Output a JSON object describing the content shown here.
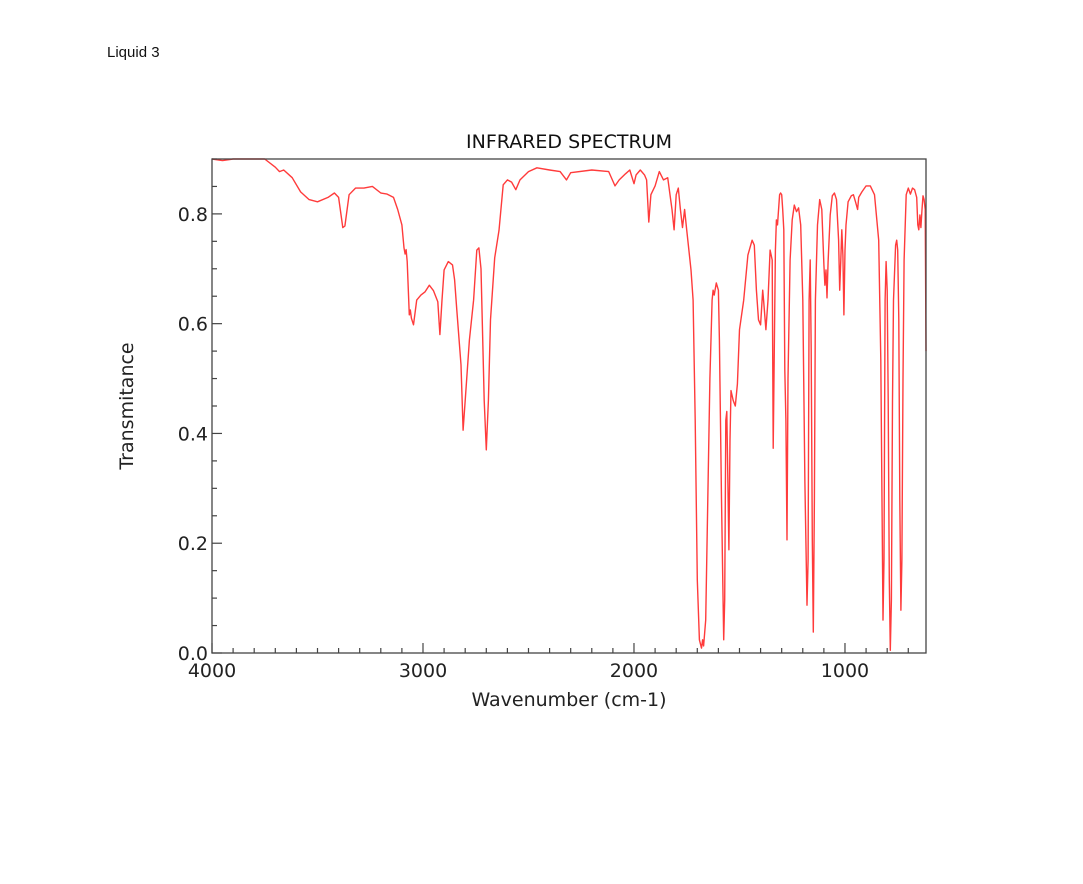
{
  "page": {
    "label": "Liquid 3"
  },
  "chart_data": {
    "type": "line",
    "title": "INFRARED SPECTRUM",
    "xlabel": "Wavenumber (cm-1)",
    "ylabel": "Transmitance",
    "xlim": [
      4000,
      616
    ],
    "ylim": [
      0.0,
      0.9
    ],
    "x_inverted": true,
    "grid": false,
    "legend": null,
    "line_color": "#ff3b3b",
    "x_major_ticks": [
      4000,
      3000,
      2000,
      1000
    ],
    "x_tick_labels": [
      "4000",
      "3000",
      "2000",
      "1000"
    ],
    "x_minor_step": 100,
    "y_major_ticks": [
      0.0,
      0.2,
      0.4,
      0.6,
      0.8
    ],
    "y_tick_labels": [
      "0.0",
      "0.2",
      "0.4",
      "0.6",
      "0.8"
    ],
    "y_minor_step": 0.05,
    "series": [
      {
        "name": "Transmittance",
        "x": [
          4000,
          3950,
          3900,
          3800,
          3750,
          3700,
          3680,
          3660,
          3620,
          3580,
          3540,
          3500,
          3450,
          3420,
          3400,
          3380,
          3370,
          3350,
          3320,
          3280,
          3240,
          3200,
          3170,
          3140,
          3120,
          3100,
          3090,
          3085,
          3080,
          3075,
          3065,
          3060,
          3055,
          3045,
          3030,
          3010,
          2990,
          2970,
          2950,
          2930,
          2920,
          2910,
          2900,
          2880,
          2860,
          2850,
          2840,
          2820,
          2810,
          2800,
          2780,
          2760,
          2745,
          2735,
          2725,
          2710,
          2700,
          2690,
          2680,
          2660,
          2640,
          2620,
          2600,
          2580,
          2560,
          2540,
          2500,
          2460,
          2400,
          2350,
          2320,
          2300,
          2200,
          2120,
          2090,
          2070,
          2040,
          2020,
          2000,
          1990,
          1970,
          1950,
          1940,
          1930,
          1920,
          1900,
          1880,
          1860,
          1840,
          1820,
          1810,
          1800,
          1790,
          1780,
          1770,
          1760,
          1750,
          1730,
          1720,
          1710,
          1700,
          1690,
          1680,
          1675,
          1670,
          1660,
          1650,
          1640,
          1630,
          1625,
          1620,
          1610,
          1600,
          1595,
          1585,
          1575,
          1570,
          1565,
          1560,
          1555,
          1550,
          1545,
          1540,
          1530,
          1520,
          1510,
          1500,
          1480,
          1460,
          1440,
          1430,
          1420,
          1410,
          1400,
          1390,
          1385,
          1375,
          1365,
          1355,
          1345,
          1340,
          1330,
          1325,
          1320,
          1310,
          1305,
          1300,
          1295,
          1290,
          1285,
          1280,
          1275,
          1270,
          1260,
          1250,
          1240,
          1230,
          1220,
          1210,
          1200,
          1190,
          1180,
          1175,
          1170,
          1165,
          1160,
          1155,
          1150,
          1145,
          1140,
          1130,
          1120,
          1110,
          1100,
          1095,
          1090,
          1085,
          1080,
          1070,
          1060,
          1050,
          1040,
          1030,
          1025,
          1020,
          1015,
          1010,
          1005,
          1000,
          995,
          985,
          970,
          960,
          950,
          940,
          935,
          920,
          900,
          880,
          860,
          840,
          830,
          820,
          815,
          810,
          805,
          800,
          795,
          790,
          785,
          780,
          775,
          770,
          760,
          755,
          750,
          745,
          740,
          735,
          730,
          725,
          720,
          710,
          700,
          690,
          680,
          670,
          660,
          655,
          650,
          645,
          640,
          635,
          630,
          625,
          620,
          616
        ],
        "y": [
          0.9,
          0.897,
          0.9,
          0.9,
          0.9,
          0.885,
          0.877,
          0.88,
          0.866,
          0.84,
          0.826,
          0.822,
          0.83,
          0.838,
          0.83,
          0.775,
          0.778,
          0.835,
          0.847,
          0.847,
          0.85,
          0.838,
          0.836,
          0.83,
          0.808,
          0.78,
          0.738,
          0.727,
          0.735,
          0.713,
          0.616,
          0.625,
          0.61,
          0.598,
          0.643,
          0.652,
          0.658,
          0.67,
          0.66,
          0.64,
          0.58,
          0.643,
          0.698,
          0.713,
          0.707,
          0.68,
          0.625,
          0.525,
          0.406,
          0.46,
          0.57,
          0.643,
          0.734,
          0.738,
          0.7,
          0.46,
          0.37,
          0.46,
          0.607,
          0.72,
          0.77,
          0.853,
          0.862,
          0.858,
          0.844,
          0.862,
          0.877,
          0.884,
          0.88,
          0.877,
          0.862,
          0.875,
          0.88,
          0.877,
          0.851,
          0.862,
          0.873,
          0.88,
          0.855,
          0.871,
          0.88,
          0.871,
          0.862,
          0.785,
          0.835,
          0.851,
          0.877,
          0.862,
          0.866,
          0.808,
          0.771,
          0.835,
          0.847,
          0.808,
          0.775,
          0.808,
          0.771,
          0.698,
          0.643,
          0.424,
          0.133,
          0.024,
          0.009,
          0.024,
          0.013,
          0.06,
          0.28,
          0.5,
          0.643,
          0.661,
          0.652,
          0.674,
          0.661,
          0.57,
          0.28,
          0.024,
          0.097,
          0.424,
          0.44,
          0.31,
          0.188,
          0.388,
          0.478,
          0.46,
          0.45,
          0.49,
          0.589,
          0.643,
          0.725,
          0.752,
          0.743,
          0.661,
          0.607,
          0.598,
          0.661,
          0.64,
          0.589,
          0.643,
          0.734,
          0.716,
          0.373,
          0.734,
          0.789,
          0.78,
          0.835,
          0.838,
          0.835,
          0.808,
          0.771,
          0.516,
          0.424,
          0.206,
          0.5,
          0.716,
          0.789,
          0.816,
          0.804,
          0.811,
          0.78,
          0.643,
          0.31,
          0.087,
          0.17,
          0.643,
          0.716,
          0.552,
          0.206,
          0.038,
          0.28,
          0.643,
          0.78,
          0.826,
          0.808,
          0.707,
          0.67,
          0.698,
          0.647,
          0.713,
          0.798,
          0.833,
          0.838,
          0.826,
          0.752,
          0.661,
          0.716,
          0.771,
          0.725,
          0.616,
          0.734,
          0.78,
          0.822,
          0.833,
          0.835,
          0.822,
          0.808,
          0.83,
          0.84,
          0.851,
          0.851,
          0.835,
          0.752,
          0.534,
          0.06,
          0.17,
          0.643,
          0.713,
          0.661,
          0.46,
          0.133,
          0.005,
          0.097,
          0.46,
          0.643,
          0.743,
          0.752,
          0.734,
          0.607,
          0.28,
          0.078,
          0.17,
          0.5,
          0.716,
          0.835,
          0.847,
          0.836,
          0.847,
          0.844,
          0.83,
          0.78,
          0.771,
          0.798,
          0.775,
          0.808,
          0.833,
          0.826,
          0.808,
          0.55
        ]
      }
    ],
    "annotations": []
  }
}
